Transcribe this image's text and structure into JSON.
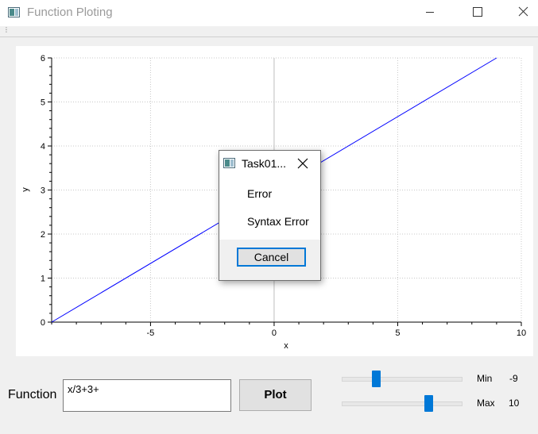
{
  "window": {
    "title": "Function Ploting",
    "grip_glyph": "⋮"
  },
  "plot": {
    "xlabel": "x",
    "ylabel": "y",
    "x_ticks": [
      "-5",
      "0",
      "5",
      "10"
    ],
    "y_ticks": [
      "0",
      "1",
      "2",
      "3",
      "4",
      "5",
      "6"
    ],
    "grid": true,
    "line_color": "#0000ff"
  },
  "chart_data": {
    "type": "line",
    "title": "",
    "xlabel": "x",
    "ylabel": "y",
    "xlim": [
      -9,
      10
    ],
    "ylim": [
      0,
      6
    ],
    "series": [
      {
        "x": [
          -9,
          9
        ],
        "y": [
          0,
          6
        ]
      }
    ]
  },
  "dialog": {
    "title": "Task01...",
    "heading": "Error",
    "message": "Syntax Error",
    "cancel_label": "Cancel"
  },
  "controls": {
    "function_label": "Function",
    "function_value": "x/3+3+",
    "plot_label": "Plot",
    "min_label": "Min",
    "min_value": "-9",
    "max_label": "Max",
    "max_value": "10",
    "slider_range": [
      -20,
      20
    ]
  },
  "colors": {
    "accent": "#0078d7",
    "line": "#0000ff"
  }
}
